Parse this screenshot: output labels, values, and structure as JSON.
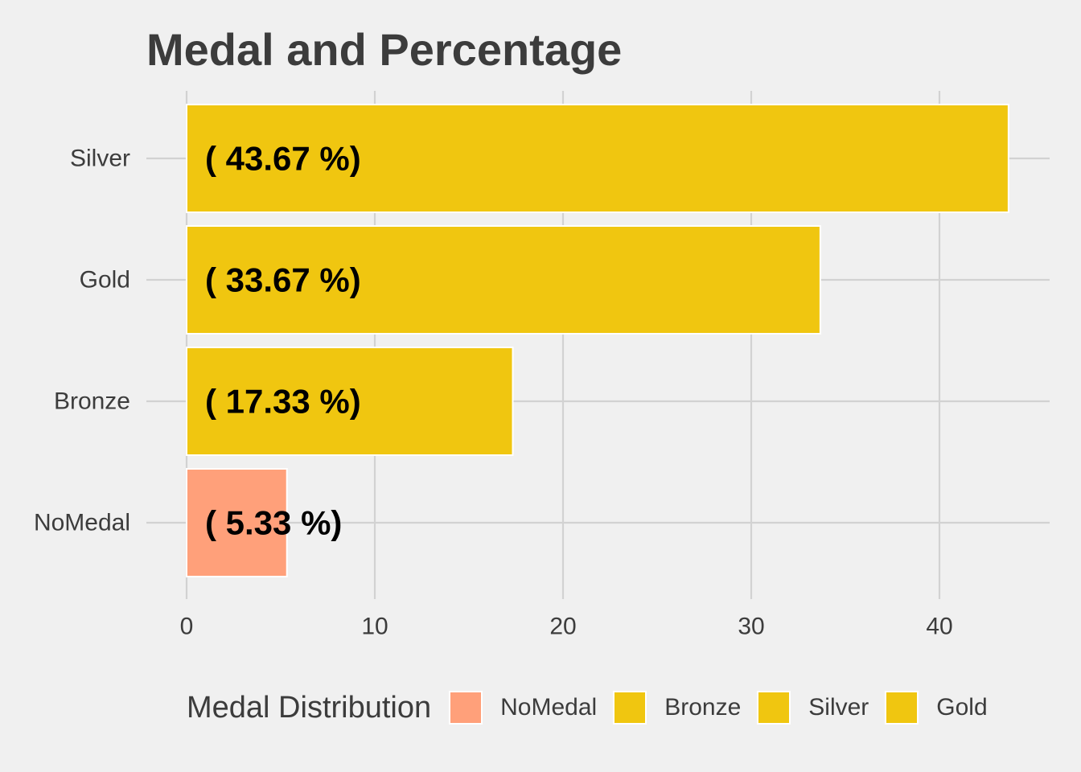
{
  "chart_data": {
    "type": "bar",
    "orientation": "horizontal",
    "title": "Medal and Percentage",
    "categories": [
      "Silver",
      "Gold",
      "Bronze",
      "NoMedal"
    ],
    "values": [
      43.67,
      33.67,
      17.33,
      5.33
    ],
    "data_labels": [
      "( 43.67 %)",
      "( 33.67 %)",
      "( 17.33 %)",
      "( 5.33 %)"
    ],
    "bar_colors": [
      "#f0c610",
      "#f0c610",
      "#f0c610",
      "#ffa07a"
    ],
    "xlim": [
      0,
      46.5
    ],
    "x_ticks": [
      0,
      10,
      20,
      30,
      40
    ],
    "grid": true,
    "legend_placement": "bottom",
    "legend": {
      "title": "Medal Distribution",
      "items": [
        {
          "label": "NoMedal",
          "color": "#ffa07a"
        },
        {
          "label": "Bronze",
          "color": "#f0c610"
        },
        {
          "label": "Silver",
          "color": "#f0c610"
        },
        {
          "label": "Gold",
          "color": "#f0c610"
        }
      ]
    }
  }
}
